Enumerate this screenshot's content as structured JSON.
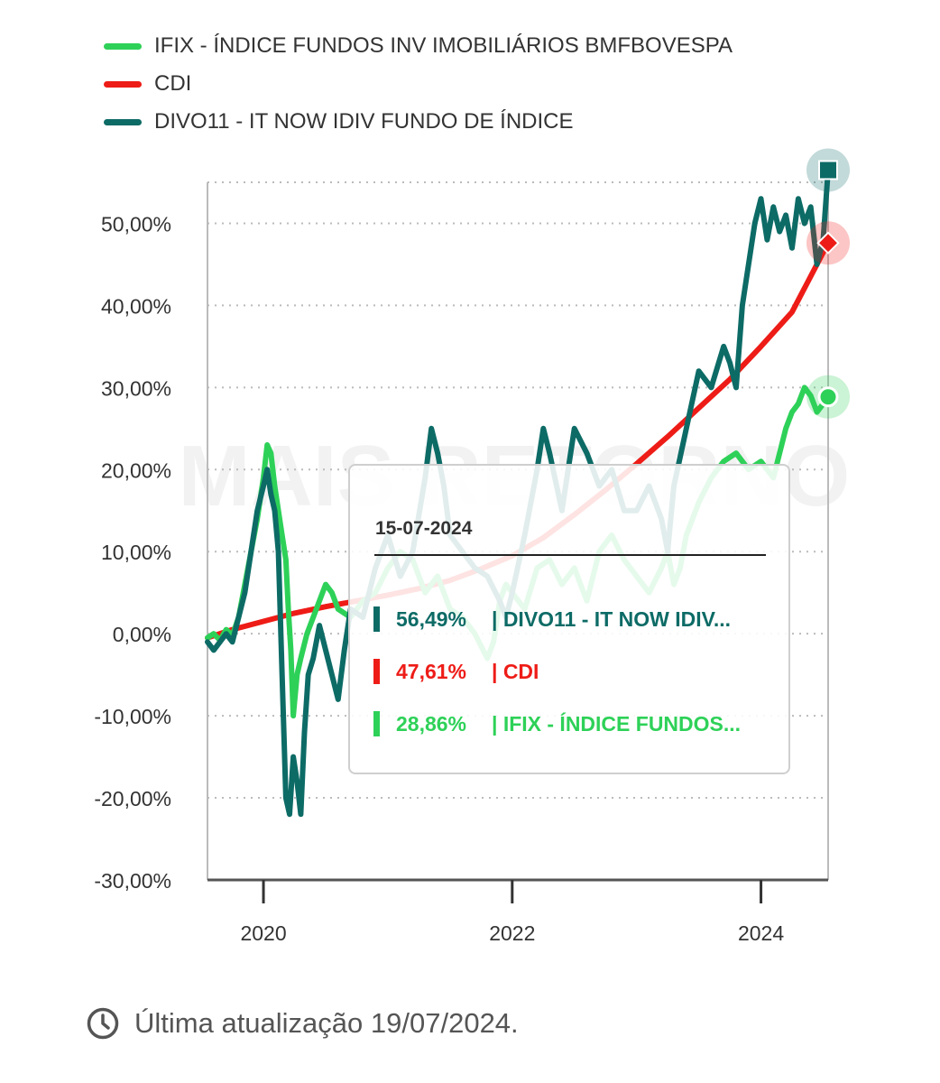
{
  "chart_data": {
    "type": "line",
    "title": "",
    "xlabel": "",
    "ylabel": "",
    "x_ticks": [
      "2020",
      "2022",
      "2024"
    ],
    "x_tick_years": [
      2020,
      2022,
      2024
    ],
    "x_range": [
      2019.55,
      2024.54
    ],
    "y_ticks": [
      "50,00%",
      "40,00%",
      "30,00%",
      "20,00%",
      "10,00%",
      "0,00%",
      "-10,00%",
      "-20,00%",
      "-30,00%"
    ],
    "y_tick_values": [
      50,
      40,
      30,
      20,
      10,
      0,
      -10,
      -20,
      -30
    ],
    "ylim": [
      -30,
      55
    ],
    "grid": true,
    "legend_position": "top-left",
    "series": [
      {
        "name": "IFIX - ÍNDICE FUNDOS INV IMOBILIÁRIOS BMFBOVESPA",
        "color": "#2ed158",
        "end_marker": "circle",
        "x": [
          2019.55,
          2019.6,
          2019.65,
          2019.7,
          2019.75,
          2019.8,
          2019.85,
          2019.9,
          2019.95,
          2020.0,
          2020.03,
          2020.06,
          2020.09,
          2020.12,
          2020.15,
          2020.18,
          2020.2,
          2020.22,
          2020.24,
          2020.27,
          2020.3,
          2020.35,
          2020.4,
          2020.45,
          2020.5,
          2020.55,
          2020.6,
          2020.7,
          2020.8,
          2020.9,
          2021.0,
          2021.1,
          2021.2,
          2021.3,
          2021.4,
          2021.5,
          2021.6,
          2021.7,
          2021.8,
          2021.85,
          2021.9,
          2021.95,
          2022.0,
          2022.1,
          2022.2,
          2022.3,
          2022.4,
          2022.5,
          2022.6,
          2022.7,
          2022.8,
          2022.9,
          2023.0,
          2023.1,
          2023.2,
          2023.25,
          2023.3,
          2023.35,
          2023.4,
          2023.5,
          2023.6,
          2023.7,
          2023.8,
          2023.9,
          2024.0,
          2024.1,
          2024.2,
          2024.25,
          2024.3,
          2024.35,
          2024.4,
          2024.45,
          2024.5,
          2024.54
        ],
        "values": [
          -0.5,
          0,
          -0.8,
          0.5,
          -0.2,
          2,
          6,
          10,
          14,
          19,
          23,
          22,
          18,
          15,
          12,
          9,
          3,
          -2,
          -10,
          -5,
          -3,
          0,
          2,
          4,
          6,
          5,
          3,
          2,
          4,
          5,
          8,
          10,
          9,
          5,
          7,
          3,
          2,
          0,
          -3,
          -1,
          4,
          6,
          5,
          3,
          8,
          9,
          6,
          8,
          4,
          10,
          12,
          9,
          7,
          5,
          8,
          10,
          6,
          8,
          12,
          16,
          19,
          21,
          22,
          20,
          21,
          19,
          25,
          27,
          28,
          30,
          29,
          27,
          28,
          28.86
        ]
      },
      {
        "name": "CDI",
        "color": "#ee1c17",
        "end_marker": "diamond",
        "x": [
          2019.55,
          2019.75,
          2020.0,
          2020.25,
          2020.5,
          2020.75,
          2021.0,
          2021.25,
          2021.5,
          2021.75,
          2022.0,
          2022.25,
          2022.5,
          2022.75,
          2023.0,
          2023.25,
          2023.5,
          2023.75,
          2024.0,
          2024.25,
          2024.54
        ],
        "values": [
          -0.5,
          0.5,
          1.5,
          2.5,
          3.3,
          4,
          4.7,
          5.5,
          6.5,
          7.9,
          9.5,
          11.7,
          14.5,
          17.5,
          20.7,
          24,
          27.5,
          31,
          35,
          39.2,
          47.61
        ]
      },
      {
        "name": "DIVO11 - IT NOW IDIV FUNDO DE ÍNDICE",
        "color": "#0d6b66",
        "end_marker": "square",
        "x": [
          2019.55,
          2019.6,
          2019.65,
          2019.7,
          2019.75,
          2019.8,
          2019.85,
          2019.9,
          2019.95,
          2020.0,
          2020.03,
          2020.06,
          2020.09,
          2020.12,
          2020.15,
          2020.18,
          2020.21,
          2020.24,
          2020.27,
          2020.3,
          2020.33,
          2020.36,
          2020.4,
          2020.45,
          2020.5,
          2020.55,
          2020.6,
          2020.65,
          2020.7,
          2020.8,
          2020.9,
          2021.0,
          2021.1,
          2021.2,
          2021.3,
          2021.35,
          2021.4,
          2021.45,
          2021.5,
          2021.6,
          2021.7,
          2021.8,
          2021.9,
          2021.95,
          2022.0,
          2022.1,
          2022.2,
          2022.25,
          2022.3,
          2022.4,
          2022.5,
          2022.6,
          2022.7,
          2022.8,
          2022.9,
          2023.0,
          2023.1,
          2023.2,
          2023.25,
          2023.3,
          2023.4,
          2023.5,
          2023.6,
          2023.7,
          2023.75,
          2023.8,
          2023.85,
          2023.9,
          2023.95,
          2024.0,
          2024.05,
          2024.1,
          2024.15,
          2024.2,
          2024.25,
          2024.3,
          2024.35,
          2024.4,
          2024.45,
          2024.5,
          2024.54
        ],
        "values": [
          -1,
          -2,
          -1,
          0,
          -1,
          2,
          5,
          10,
          15,
          18,
          20,
          17,
          15,
          10,
          -5,
          -20,
          -22,
          -15,
          -18,
          -22,
          -12,
          -5,
          -3,
          1,
          -2,
          -5,
          -8,
          -2,
          3,
          2,
          8,
          12,
          7,
          10,
          19,
          25,
          22,
          18,
          12,
          10,
          8,
          7,
          4,
          2,
          5,
          12,
          20,
          25,
          22,
          15,
          25,
          22,
          18,
          20,
          15,
          15,
          18,
          14,
          10,
          18,
          25,
          32,
          30,
          35,
          33,
          30,
          40,
          45,
          50,
          53,
          48,
          52,
          49,
          51,
          47,
          53,
          50,
          52,
          45,
          48,
          56.49
        ]
      }
    ],
    "watermark": "MAIS RETORNO"
  },
  "tooltip": {
    "date": "15-07-2024",
    "rows": [
      {
        "value": "56,49%",
        "label": "| DIVO11 - IT NOW IDIV...",
        "color": "#0d6b66"
      },
      {
        "value": "47,61%",
        "label": "| CDI",
        "color": "#ee1c17"
      },
      {
        "value": "28,86%",
        "label": "| IFIX - ÍNDICE FUNDOS...",
        "color": "#2ed158"
      }
    ]
  },
  "footer": {
    "updated_text": "Última atualização 19/07/2024.",
    "icon": "clock-icon"
  }
}
